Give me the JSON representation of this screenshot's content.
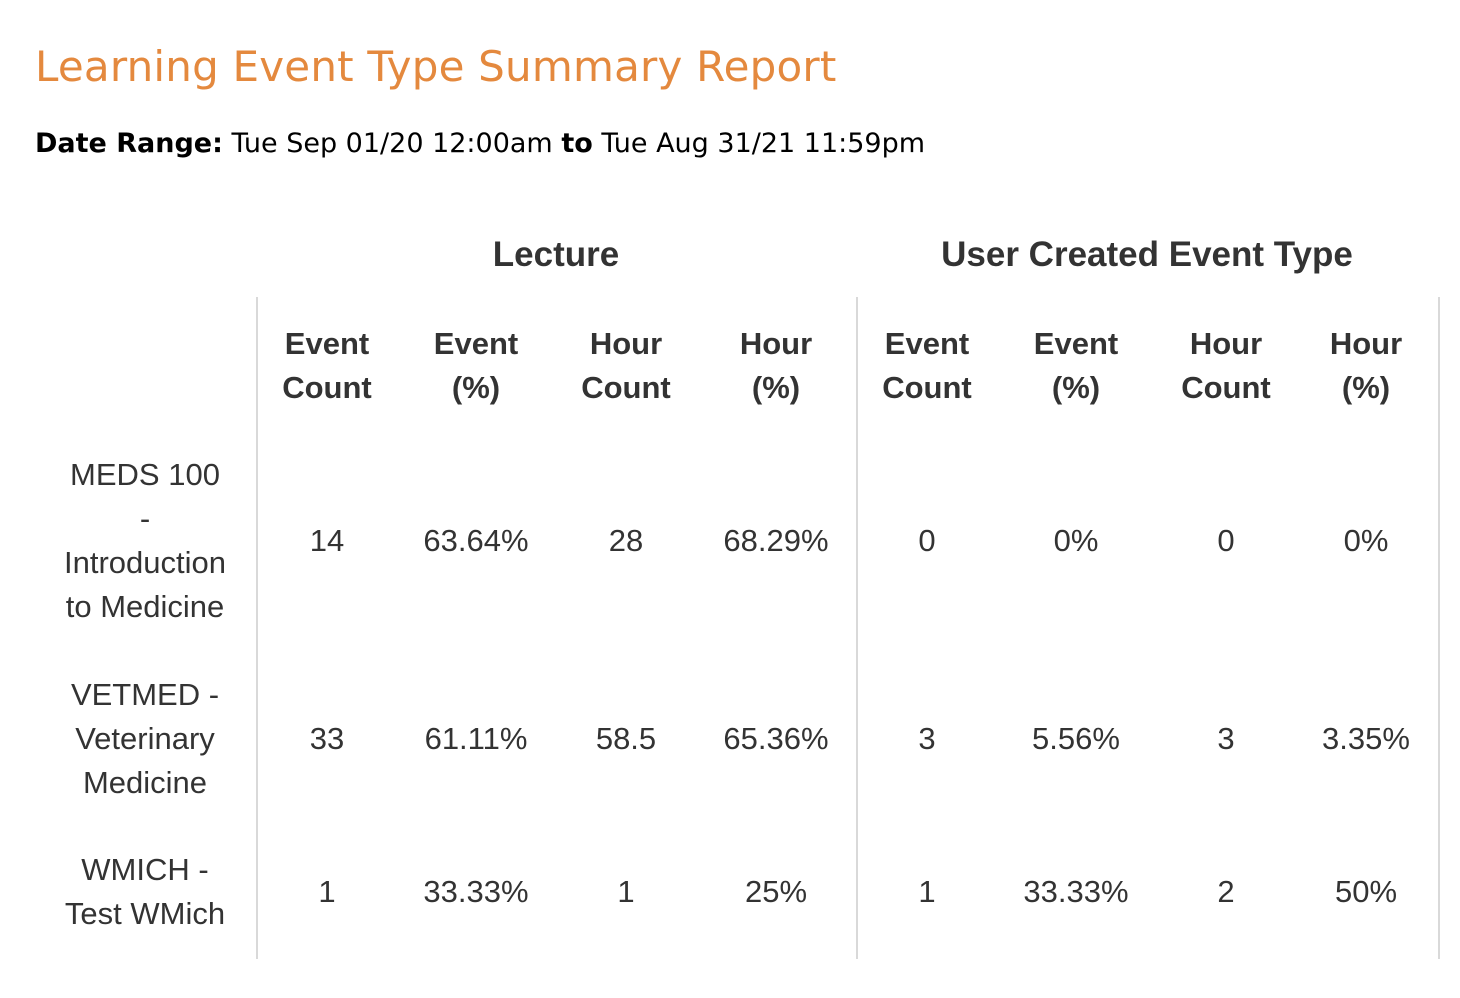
{
  "report": {
    "title": "Learning Event Type Summary Report",
    "date_range_label": "Date Range:",
    "date_start": "Tue Sep 01/20 12:00am",
    "date_to": "to",
    "date_end": "Tue Aug 31/21 11:59pm"
  },
  "table": {
    "groups": [
      "Lecture",
      "User Created Event Type"
    ],
    "columns": [
      [
        "Event",
        "Count"
      ],
      [
        "Event",
        "(%)"
      ],
      [
        "Hour",
        "Count"
      ],
      [
        "Hour",
        "(%)"
      ],
      [
        "Event",
        "Count"
      ],
      [
        "Event",
        "(%)"
      ],
      [
        "Hour",
        "Count"
      ],
      [
        "Hour",
        "(%)"
      ]
    ],
    "rows": [
      {
        "label_lines": [
          "MEDS 100",
          "-",
          "Introduction",
          "to Medicine"
        ],
        "cells": [
          "14",
          "63.64%",
          "28",
          "68.29%",
          "0",
          "0%",
          "0",
          "0%"
        ]
      },
      {
        "label_lines": [
          "VETMED -",
          "Veterinary",
          "Medicine"
        ],
        "cells": [
          "33",
          "61.11%",
          "58.5",
          "65.36%",
          "3",
          "5.56%",
          "3",
          "3.35%"
        ]
      },
      {
        "label_lines": [
          "WMICH -",
          "Test WMich"
        ],
        "cells": [
          "1",
          "33.33%",
          "1",
          "25%",
          "1",
          "33.33%",
          "2",
          "50%"
        ]
      }
    ]
  }
}
